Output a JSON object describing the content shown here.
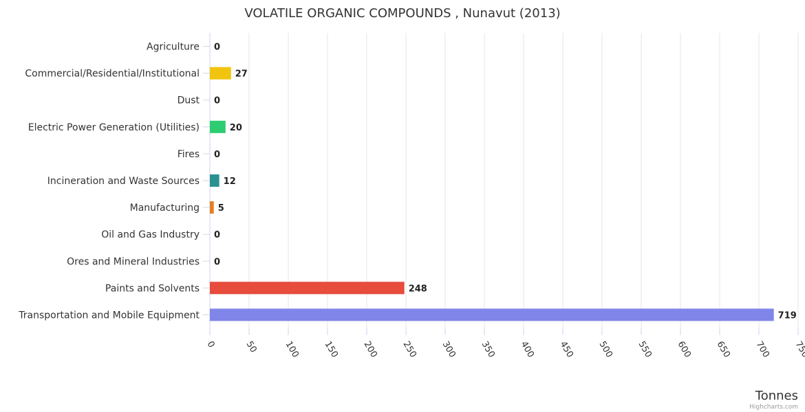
{
  "chart_data": {
    "type": "bar",
    "orientation": "horizontal",
    "title": "VOLATILE ORGANIC COMPOUNDS , Nunavut (2013)",
    "categories": [
      "Agriculture",
      "Commercial/Residential/Institutional",
      "Dust",
      "Electric Power Generation (Utilities)",
      "Fires",
      "Incineration and Waste Sources",
      "Manufacturing",
      "Oil and Gas Industry",
      "Ores and Mineral Industries",
      "Paints and Solvents",
      "Transportation and Mobile Equipment"
    ],
    "values": [
      0,
      27,
      0,
      20,
      0,
      12,
      5,
      0,
      0,
      248,
      719
    ],
    "value_labels": [
      "0",
      "27",
      "0",
      "20",
      "0",
      "12",
      "5",
      "0",
      "0",
      "248",
      "719"
    ],
    "colors": [
      "#7cb5ec",
      "#f1c40f",
      "#2c3e50",
      "#2ecc71",
      "#e67e22",
      "#2a9190",
      "#e67e22",
      "#8e44ad",
      "#16a085",
      "#e74c3c",
      "#8085e9"
    ],
    "xlim": [
      0,
      750
    ],
    "xticks": [
      "0",
      "50",
      "100",
      "150",
      "200",
      "250",
      "300",
      "350",
      "400",
      "450",
      "500",
      "550",
      "600",
      "650",
      "700",
      "750"
    ],
    "xlabel": "Tonnes",
    "ylabel": "",
    "grid": true,
    "legend": "none"
  },
  "credits": "Highcharts.com"
}
